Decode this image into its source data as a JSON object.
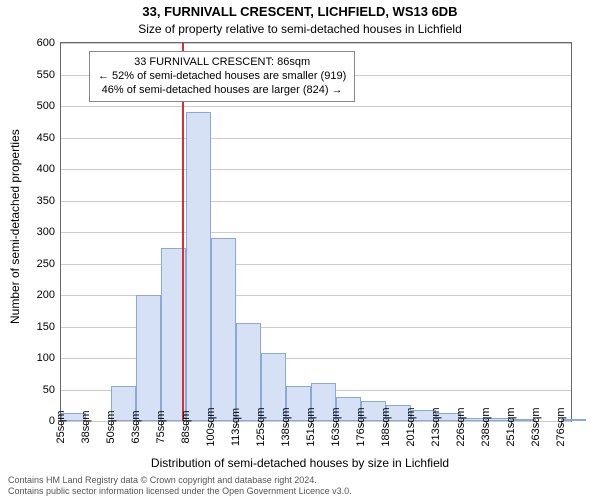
{
  "title": "33, FURNIVALL CRESCENT, LICHFIELD, WS13 6DB",
  "subtitle": "Size of property relative to semi-detached houses in Lichfield",
  "ylabel": "Number of semi-detached properties",
  "xlabel": "Distribution of semi-detached houses by size in Lichfield",
  "credit1": "Contains HM Land Registry data © Crown copyright and database right 2024.",
  "credit2": "Contains public sector information licensed under the Open Government Licence v3.0.",
  "annotation": {
    "line1": "33 FURNIVALL CRESCENT: 86sqm",
    "line2": "← 52% of semi-detached houses are smaller (919)",
    "line3": "46% of semi-detached houses are larger (824) →"
  },
  "chart": {
    "type": "histogram",
    "ylim": [
      0,
      600
    ],
    "yticks": [
      0,
      50,
      100,
      150,
      200,
      250,
      300,
      350,
      400,
      450,
      500,
      550,
      600
    ],
    "xticks": [
      "25sqm",
      "38sqm",
      "50sqm",
      "63sqm",
      "75sqm",
      "88sqm",
      "100sqm",
      "113sqm",
      "125sqm",
      "138sqm",
      "151sqm",
      "163sqm",
      "176sqm",
      "188sqm",
      "201sqm",
      "213sqm",
      "226sqm",
      "238sqm",
      "251sqm",
      "263sqm",
      "276sqm"
    ],
    "xstart": 25,
    "xend": 282,
    "binwidth": 12.6,
    "values": [
      12,
      0,
      55,
      200,
      275,
      490,
      290,
      155,
      108,
      55,
      60,
      38,
      32,
      25,
      18,
      12,
      5,
      4,
      2,
      0,
      1
    ],
    "bar_fill": "#d6e1f5",
    "bar_stroke": "#8aa8d8",
    "grid_color": "#cccccc",
    "axis_color": "#666666",
    "refline_x": 86,
    "refline_color": "#d83030",
    "title_fontsize": 13,
    "subtitle_fontsize": 12,
    "tick_fontsize": 11,
    "label_fontsize": 12,
    "anno_fontsize": 11,
    "credit_fontsize": 9,
    "credit_color": "#555555"
  }
}
